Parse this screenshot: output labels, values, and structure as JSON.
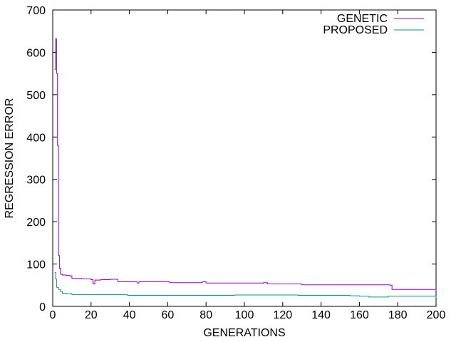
{
  "chart_data": {
    "type": "line",
    "xlabel": "GENERATIONS",
    "ylabel": "REGRESSION ERROR",
    "xlim": [
      0,
      200
    ],
    "ylim": [
      0,
      700
    ],
    "xticks": [
      0,
      20,
      40,
      60,
      80,
      100,
      120,
      140,
      160,
      180,
      200
    ],
    "yticks": [
      0,
      100,
      200,
      300,
      400,
      500,
      600,
      700
    ],
    "grid": false,
    "legend_position": "top-right",
    "series": [
      {
        "name": "GENETIC",
        "color": "#9400d3",
        "points": [
          [
            1,
            560
          ],
          [
            1.5,
            632
          ],
          [
            2,
            550
          ],
          [
            2.5,
            380
          ],
          [
            3,
            120
          ],
          [
            3.5,
            90
          ],
          [
            4,
            76
          ],
          [
            5,
            74
          ],
          [
            7,
            73
          ],
          [
            9,
            72
          ],
          [
            10,
            66
          ],
          [
            15,
            65
          ],
          [
            19,
            65
          ],
          [
            20,
            63
          ],
          [
            21,
            53
          ],
          [
            22,
            62
          ],
          [
            25,
            63
          ],
          [
            30,
            64
          ],
          [
            33,
            64
          ],
          [
            34,
            58
          ],
          [
            42,
            58
          ],
          [
            44,
            55
          ],
          [
            45,
            58
          ],
          [
            60,
            58
          ],
          [
            61,
            56
          ],
          [
            75,
            56
          ],
          [
            78,
            58
          ],
          [
            80,
            55
          ],
          [
            108,
            55
          ],
          [
            110,
            56
          ],
          [
            112,
            53
          ],
          [
            128,
            53
          ],
          [
            130,
            51
          ],
          [
            160,
            51
          ],
          [
            176,
            50
          ],
          [
            177,
            40
          ],
          [
            199,
            40
          ],
          [
            200,
            37
          ]
        ]
      },
      {
        "name": "PROPOSED",
        "color": "#009e73",
        "points": [
          [
            1,
            80
          ],
          [
            1.5,
            65
          ],
          [
            2,
            45
          ],
          [
            3,
            40
          ],
          [
            4,
            35
          ],
          [
            5,
            31
          ],
          [
            7,
            30
          ],
          [
            10,
            28
          ],
          [
            20,
            28
          ],
          [
            30,
            28
          ],
          [
            38,
            28
          ],
          [
            39,
            26
          ],
          [
            60,
            26
          ],
          [
            90,
            26
          ],
          [
            95,
            27
          ],
          [
            120,
            27
          ],
          [
            128,
            26
          ],
          [
            150,
            26
          ],
          [
            155,
            25
          ],
          [
            160,
            24
          ],
          [
            165,
            22
          ],
          [
            175,
            24
          ],
          [
            200,
            21
          ]
        ]
      }
    ]
  }
}
